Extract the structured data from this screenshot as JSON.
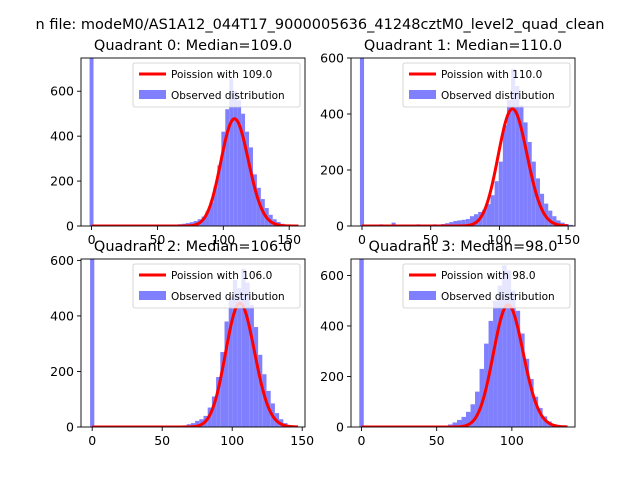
{
  "figure": {
    "suptitle": "n file: modeM0/AS1A12_044T17_9000005636_41248cztM0_level2_quad_clean"
  },
  "colors": {
    "poisson": "#ff0000",
    "observed": "#8080ff",
    "axis": "#000000"
  },
  "chart_data": [
    {
      "type": "bar",
      "title": "Quadrant 0: Median=109.0",
      "legend": [
        "Poission with 109.0",
        "Observed distribution"
      ],
      "legend_placement": "top-right",
      "xticks": [
        0,
        50,
        100,
        150
      ],
      "yticks": [
        0,
        200,
        400,
        600
      ],
      "xlim": [
        -8,
        162
      ],
      "ylim": [
        0,
        748
      ],
      "poisson_mean": 109.0,
      "poisson_total": 12500,
      "spike": {
        "x": 0,
        "value": 748
      },
      "histogram": {
        "bin_width": 3,
        "x": [
          55,
          58,
          61,
          64,
          67,
          70,
          73,
          76,
          79,
          82,
          85,
          88,
          91,
          94,
          97,
          100,
          103,
          106,
          109,
          112,
          115,
          118,
          121,
          124,
          127,
          130,
          133,
          136,
          139,
          142,
          145,
          148,
          151,
          154,
          157
        ],
        "values": [
          2,
          3,
          3,
          5,
          8,
          10,
          13,
          17,
          22,
          30,
          42,
          65,
          105,
          175,
          270,
          420,
          520,
          655,
          600,
          560,
          500,
          420,
          350,
          230,
          170,
          120,
          80,
          50,
          30,
          18,
          10,
          6,
          4,
          2,
          1
        ]
      }
    },
    {
      "type": "bar",
      "title": "Quadrant 1: Median=110.0",
      "legend": [
        "Poission with 110.0",
        "Observed distribution"
      ],
      "legend_placement": "top-right",
      "xticks": [
        0,
        50,
        100,
        150
      ],
      "yticks": [
        0,
        200,
        400,
        600
      ],
      "xlim": [
        -8,
        155
      ],
      "ylim": [
        0,
        600
      ],
      "poisson_mean": 110.0,
      "poisson_total": 11000,
      "spike": {
        "x": 0,
        "value": 600
      },
      "histogram": {
        "bin_width": 3,
        "x": [
          2,
          5,
          8,
          11,
          14,
          17,
          20,
          23,
          26,
          29,
          32,
          35,
          38,
          41,
          44,
          47,
          50,
          53,
          56,
          59,
          62,
          65,
          68,
          71,
          74,
          77,
          80,
          83,
          86,
          89,
          92,
          95,
          98,
          101,
          104,
          107,
          110,
          113,
          116,
          119,
          122,
          125,
          128,
          131,
          134,
          137,
          140,
          143,
          146,
          149,
          152
        ],
        "values": [
          2,
          3,
          4,
          5,
          6,
          4,
          4,
          12,
          5,
          3,
          3,
          4,
          5,
          6,
          5,
          4,
          5,
          6,
          5,
          7,
          10,
          14,
          18,
          20,
          22,
          25,
          35,
          42,
          50,
          58,
          78,
          110,
          160,
          230,
          360,
          450,
          560,
          500,
          430,
          370,
          300,
          230,
          170,
          115,
          80,
          55,
          35,
          20,
          12,
          7,
          4
        ]
      }
    },
    {
      "type": "bar",
      "title": "Quadrant 2: Median=106.0",
      "legend": [
        "Poission with 106.0",
        "Observed distribution"
      ],
      "legend_placement": "top-right",
      "xticks": [
        0,
        50,
        100,
        150
      ],
      "yticks": [
        0,
        200,
        400,
        600
      ],
      "xlim": [
        -8,
        152
      ],
      "ylim": [
        0,
        605
      ],
      "poisson_mean": 106.0,
      "poisson_total": 11500,
      "spike": {
        "x": 0,
        "value": 605
      },
      "histogram": {
        "bin_width": 3,
        "x": [
          57,
          60,
          63,
          66,
          69,
          72,
          75,
          78,
          81,
          84,
          87,
          90,
          93,
          96,
          99,
          102,
          105,
          108,
          111,
          114,
          117,
          120,
          123,
          126,
          129,
          132,
          135,
          138,
          141,
          144,
          147
        ],
        "values": [
          2,
          3,
          4,
          6,
          10,
          14,
          22,
          28,
          40,
          70,
          110,
          180,
          270,
          380,
          470,
          530,
          500,
          570,
          520,
          440,
          360,
          260,
          190,
          130,
          85,
          50,
          28,
          14,
          7,
          3,
          2
        ]
      }
    },
    {
      "type": "bar",
      "title": "Quadrant 3: Median=98.0",
      "legend": [
        "Poission with 98.0",
        "Observed distribution"
      ],
      "legend_placement": "top-right",
      "xticks": [
        0,
        50,
        100
      ],
      "yticks": [
        0,
        200,
        400,
        600
      ],
      "xlim": [
        -7,
        142
      ],
      "ylim": [
        0,
        665
      ],
      "poisson_mean": 98.0,
      "poisson_total": 12000,
      "spike": {
        "x": 0,
        "value": 665
      },
      "histogram": {
        "bin_width": 3,
        "x": [
          50,
          53,
          56,
          59,
          62,
          65,
          68,
          71,
          74,
          77,
          80,
          83,
          86,
          89,
          92,
          95,
          98,
          101,
          104,
          107,
          110,
          113,
          116,
          119,
          122,
          125,
          128,
          131,
          134
        ],
        "values": [
          2,
          3,
          5,
          10,
          18,
          28,
          40,
          60,
          90,
          140,
          230,
          330,
          420,
          500,
          560,
          640,
          620,
          540,
          460,
          370,
          270,
          190,
          120,
          75,
          42,
          22,
          10,
          4,
          2
        ]
      }
    }
  ]
}
